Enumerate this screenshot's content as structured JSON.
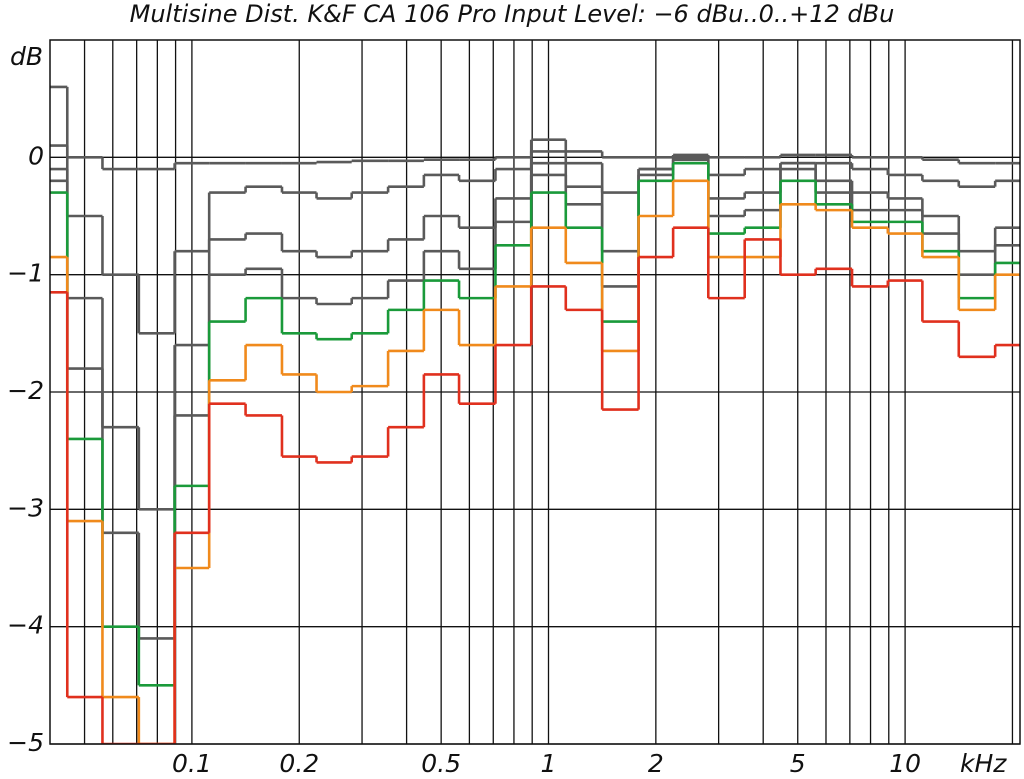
{
  "chart_data": {
    "type": "step",
    "title": "Multisine Dist. K&F CA 106 Pro Input Level: −6 dBu..0..+12 dBu",
    "x_label": "kHz",
    "y_label": "dB",
    "x": [
      0.04,
      0.05,
      0.063,
      0.08,
      0.1,
      0.125,
      0.16,
      0.2,
      0.25,
      0.315,
      0.4,
      0.5,
      0.63,
      0.8,
      1,
      1.25,
      1.6,
      2,
      2.5,
      3.15,
      4,
      5,
      6.3,
      8,
      10,
      12.5,
      16,
      20
    ],
    "series": [
      {
        "color": "#5a5a5a",
        "values": [
          0.6,
          0.0,
          -0.1,
          -0.1,
          -0.05,
          -0.05,
          -0.05,
          -0.05,
          -0.04,
          -0.03,
          -0.03,
          -0.02,
          -0.02,
          0.0,
          0.15,
          0.05,
          0.0,
          0.0,
          0.02,
          0.0,
          0.0,
          0.02,
          0.02,
          0.0,
          0.0,
          -0.02,
          -0.05,
          -0.05
        ]
      },
      {
        "color": "#5a5a5a",
        "values": [
          0.1,
          -0.5,
          -1.0,
          -1.5,
          -0.8,
          -0.3,
          -0.25,
          -0.3,
          -0.35,
          -0.3,
          -0.25,
          -0.15,
          -0.2,
          -0.1,
          0.05,
          -0.05,
          -0.3,
          -0.1,
          -0.05,
          -0.15,
          -0.1,
          -0.05,
          -0.05,
          -0.1,
          -0.15,
          -0.2,
          -0.25,
          -0.2
        ]
      },
      {
        "color": "#5a5a5a",
        "values": [
          -0.1,
          -1.2,
          -2.3,
          -3.0,
          -1.6,
          -0.7,
          -0.65,
          -0.8,
          -0.85,
          -0.8,
          -0.7,
          -0.5,
          -0.6,
          -0.35,
          -0.05,
          -0.25,
          -0.8,
          -0.1,
          0.0,
          -0.35,
          -0.3,
          -0.05,
          -0.2,
          -0.3,
          -0.35,
          -0.5,
          -0.8,
          -0.6
        ]
      },
      {
        "color": "#5a5a5a",
        "values": [
          -0.2,
          -1.8,
          -3.2,
          -4.1,
          -2.2,
          -1.0,
          -0.95,
          -1.2,
          -1.25,
          -1.2,
          -1.05,
          -0.8,
          -0.95,
          -0.55,
          -0.15,
          -0.4,
          -1.1,
          -0.15,
          -0.02,
          -0.5,
          -0.45,
          -0.1,
          -0.3,
          -0.45,
          -0.45,
          -0.65,
          -1.0,
          -0.75
        ]
      },
      {
        "color": "#1a9a3a",
        "values": [
          -0.3,
          -2.4,
          -4.0,
          -4.5,
          -2.8,
          -1.4,
          -1.2,
          -1.5,
          -1.55,
          -1.5,
          -1.3,
          -1.05,
          -1.2,
          -0.75,
          -0.3,
          -0.6,
          -1.4,
          -0.2,
          -0.05,
          -0.65,
          -0.6,
          -0.2,
          -0.4,
          -0.55,
          -0.55,
          -0.8,
          -1.2,
          -0.9
        ]
      },
      {
        "color": "#f08a1c",
        "values": [
          -0.85,
          -3.1,
          -4.6,
          -5.0,
          -3.5,
          -1.9,
          -1.6,
          -1.85,
          -2.0,
          -1.95,
          -1.65,
          -1.3,
          -1.6,
          -1.1,
          -0.6,
          -0.9,
          -1.65,
          -0.5,
          -0.2,
          -0.85,
          -0.85,
          -0.4,
          -0.45,
          -0.6,
          -0.65,
          -0.85,
          -1.3,
          -1.0
        ]
      },
      {
        "color": "#e0301e",
        "values": [
          -1.15,
          -4.6,
          -5.0,
          -5.0,
          -3.2,
          -2.1,
          -2.2,
          -2.55,
          -2.6,
          -2.55,
          -2.3,
          -1.85,
          -2.1,
          -1.6,
          -1.1,
          -1.3,
          -2.15,
          -0.85,
          -0.6,
          -1.2,
          -0.7,
          -1.0,
          -0.95,
          -1.1,
          -1.05,
          -1.4,
          -1.7,
          -1.6
        ]
      }
    ],
    "xlog": true,
    "xlim": [
      0.04,
      21
    ],
    "xticks": [
      0.1,
      0.2,
      0.5,
      1,
      2,
      5,
      10
    ],
    "xgrid_minor": [
      0.05,
      0.06,
      0.07,
      0.08,
      0.09,
      0.3,
      0.4,
      0.6,
      0.7,
      0.8,
      0.9,
      3,
      4,
      6,
      7,
      8,
      9,
      20
    ],
    "ylim": [
      -5,
      1
    ],
    "yticks": [
      {
        "value": -5,
        "label": "−5"
      },
      {
        "value": -4,
        "label": "−4"
      },
      {
        "value": -3,
        "label": "−3"
      },
      {
        "value": -2,
        "label": "−2"
      },
      {
        "value": -1,
        "label": "−1"
      },
      0
    ],
    "grid": true
  }
}
